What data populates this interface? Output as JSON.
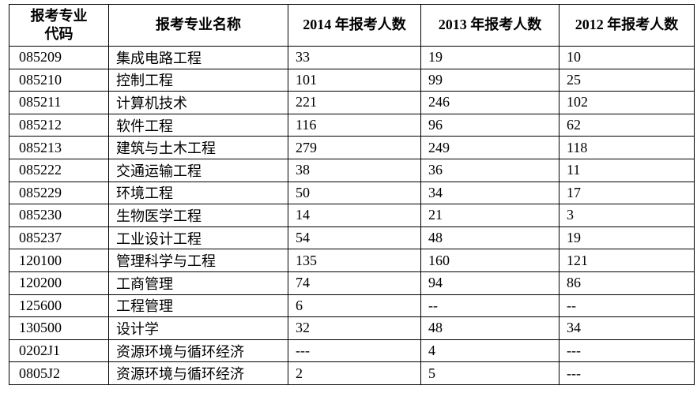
{
  "table": {
    "header": {
      "code_line1": "报考专业",
      "code_line2": "代码",
      "name": "报考专业名称",
      "y2014": "2014 年报考人数",
      "y2013": "2013 年报考人数",
      "y2012": "2012 年报考人数"
    },
    "rows": [
      {
        "code": "085209",
        "name": "集成电路工程",
        "y2014": "33",
        "y2013": "19",
        "y2012": "10"
      },
      {
        "code": "085210",
        "name": "控制工程",
        "y2014": "101",
        "y2013": "99",
        "y2012": "25"
      },
      {
        "code": "085211",
        "name": "计算机技术",
        "y2014": "221",
        "y2013": "246",
        "y2012": "102"
      },
      {
        "code": "085212",
        "name": "软件工程",
        "y2014": "116",
        "y2013": "96",
        "y2012": "62"
      },
      {
        "code": "085213",
        "name": "建筑与土木工程",
        "y2014": "279",
        "y2013": "249",
        "y2012": "118"
      },
      {
        "code": "085222",
        "name": "交通运输工程",
        "y2014": "38",
        "y2013": "36",
        "y2012": "11"
      },
      {
        "code": "085229",
        "name": "环境工程",
        "y2014": "50",
        "y2013": "34",
        "y2012": "17"
      },
      {
        "code": "085230",
        "name": "生物医学工程",
        "y2014": "14",
        "y2013": "21",
        "y2012": "3"
      },
      {
        "code": "085237",
        "name": "工业设计工程",
        "y2014": "54",
        "y2013": "48",
        "y2012": "19"
      },
      {
        "code": "120100",
        "name": "管理科学与工程",
        "y2014": "135",
        "y2013": "160",
        "y2012": "121"
      },
      {
        "code": "120200",
        "name": "工商管理",
        "y2014": "74",
        "y2013": "94",
        "y2012": "86"
      },
      {
        "code": "125600",
        "name": "工程管理",
        "y2014": "6",
        "y2013": "--",
        "y2012": "--"
      },
      {
        "code": "130500",
        "name": "设计学",
        "y2014": "32",
        "y2013": "48",
        "y2012": "34"
      },
      {
        "code": "0202J1",
        "name": "资源环境与循环经济",
        "y2014": "---",
        "y2013": "4",
        "y2012": "---"
      },
      {
        "code": "0805J2",
        "name": "资源环境与循环经济",
        "y2014": "2",
        "y2013": "5",
        "y2012": "---"
      }
    ]
  }
}
